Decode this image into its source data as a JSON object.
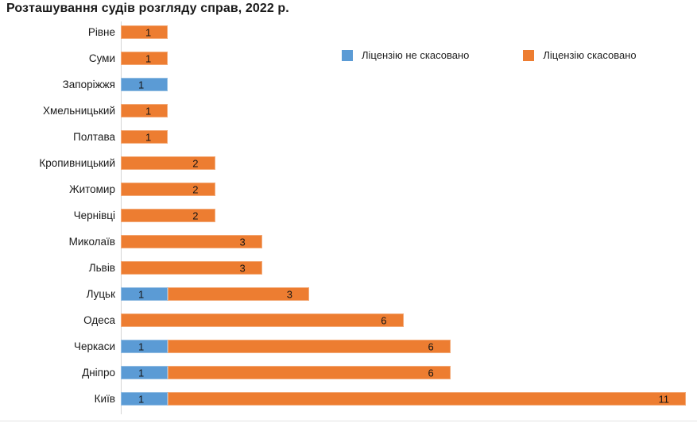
{
  "title": "Розташування судів розгляду справ, 2022 р.",
  "legend": [
    {
      "label": "Ліцензію не скасовано",
      "color": "#5B9BD5"
    },
    {
      "label": "Ліцензію скасовано",
      "color": "#ED7D31"
    }
  ],
  "chart_data": {
    "type": "bar",
    "orientation": "horizontal",
    "stacked": true,
    "title": "Розташування судів розгляду справ, 2022 р.",
    "categories": [
      "Рівне",
      "Суми",
      "Запоріжжя",
      "Хмельницький",
      "Полтава",
      "Кропивницький",
      "Житомир",
      "Чернівці",
      "Миколаїв",
      "Львів",
      "Луцьк",
      "Одеса",
      "Черкаси",
      "Дніпро",
      "Київ"
    ],
    "series": [
      {
        "name": "Ліцензію не скасовано",
        "color": "#5B9BD5",
        "values": [
          0,
          0,
          1,
          0,
          0,
          0,
          0,
          0,
          0,
          0,
          1,
          0,
          1,
          1,
          1
        ]
      },
      {
        "name": "Ліцензію скасовано",
        "color": "#ED7D31",
        "values": [
          1,
          1,
          0,
          1,
          1,
          2,
          2,
          2,
          3,
          3,
          3,
          6,
          6,
          6,
          11
        ]
      }
    ],
    "xlabel": "",
    "ylabel": "",
    "xlim": [
      0,
      12.2
    ],
    "grid": false,
    "value_labels": "inside-end",
    "legend_position": "top-right"
  }
}
